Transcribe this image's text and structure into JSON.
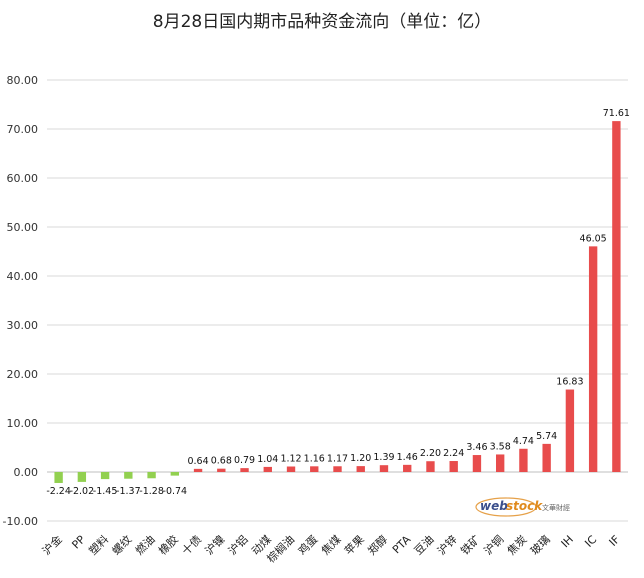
{
  "chart_data": {
    "type": "bar",
    "title": "8月28日国内期市品种资金流向（单位：亿）",
    "categories": [
      "沪金",
      "PP",
      "塑料",
      "螺纹",
      "燃油",
      "橡胶",
      "十债",
      "沪镍",
      "沪铝",
      "动煤",
      "棕榈油",
      "鸡蛋",
      "焦煤",
      "苹果",
      "郑醇",
      "PTA",
      "豆油",
      "沪锌",
      "铁矿",
      "沪铜",
      "焦炭",
      "玻璃",
      "IH",
      "IC",
      "IF"
    ],
    "values": [
      -2.24,
      -2.02,
      -1.45,
      -1.37,
      -1.28,
      -0.74,
      0.64,
      0.68,
      0.79,
      1.04,
      1.12,
      1.16,
      1.17,
      1.2,
      1.39,
      1.46,
      2.2,
      2.24,
      3.46,
      3.58,
      4.74,
      5.74,
      16.83,
      46.05,
      71.61
    ],
    "data_labels": [
      "-2.24",
      "-2.02",
      "-1.45",
      "-1.37",
      "-1.28",
      "-0.74",
      "0.64",
      "0.68",
      "0.79",
      "1.04",
      "1.12",
      "1.16",
      "1.17",
      "1.20",
      "1.39",
      "1.46",
      "2.20",
      "2.24",
      "3.46",
      "3.58",
      "4.74",
      "5.74",
      "16.83",
      "46.05",
      "71.61"
    ],
    "y_ticks": [
      "-10.00",
      "0.00",
      "10.00",
      "20.00",
      "30.00",
      "40.00",
      "50.00",
      "60.00",
      "70.00",
      "80.00"
    ],
    "ylim": [
      -10,
      80
    ],
    "xlabel": "",
    "ylabel": "",
    "grid": true,
    "legend": "none",
    "colors": {
      "positive": "#e84c4c",
      "negative": "#92d050",
      "grid": "#d9d9d9",
      "axis": "#bfbfbf"
    }
  },
  "watermark": {
    "brand_left": "web",
    "brand_right": "stock",
    "brand_cn": "文華財經"
  }
}
